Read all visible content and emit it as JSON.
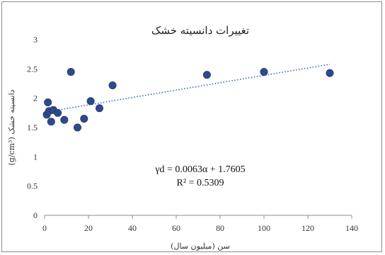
{
  "chart_data": {
    "type": "scatter",
    "title": "تغییرات دانسیته خشک",
    "xlabel": "سن (میلیون سال)",
    "ylabel": "دانسیته خشک (g/cm³)",
    "xlim": [
      0,
      140
    ],
    "ylim": [
      0,
      3
    ],
    "xticks": [
      "0",
      "20",
      "40",
      "60",
      "80",
      "100",
      "120",
      "140"
    ],
    "yticks": [
      "0",
      "0.5",
      "1",
      "1.5",
      "2",
      "2.5",
      "3"
    ],
    "grid": false,
    "marker_color": "#2f4a8a",
    "trend_color": "#3a5fcd",
    "points": [
      {
        "x": 1,
        "y": 1.72
      },
      {
        "x": 1.5,
        "y": 1.93
      },
      {
        "x": 2,
        "y": 1.78
      },
      {
        "x": 3,
        "y": 1.6
      },
      {
        "x": 4,
        "y": 1.8
      },
      {
        "x": 6,
        "y": 1.75
      },
      {
        "x": 9,
        "y": 1.63
      },
      {
        "x": 12,
        "y": 2.45
      },
      {
        "x": 15,
        "y": 1.5
      },
      {
        "x": 18,
        "y": 1.65
      },
      {
        "x": 21,
        "y": 1.95
      },
      {
        "x": 25,
        "y": 1.83
      },
      {
        "x": 31,
        "y": 2.22
      },
      {
        "x": 74,
        "y": 2.4
      },
      {
        "x": 100,
        "y": 2.45
      },
      {
        "x": 130,
        "y": 2.43
      }
    ],
    "trendline": {
      "slope": 0.0063,
      "intercept": 1.7605,
      "x_range": [
        0,
        130
      ]
    },
    "equation_line1": "γd = 0.0063α + 1.7605",
    "equation_line2": "R² = 0.5309"
  }
}
